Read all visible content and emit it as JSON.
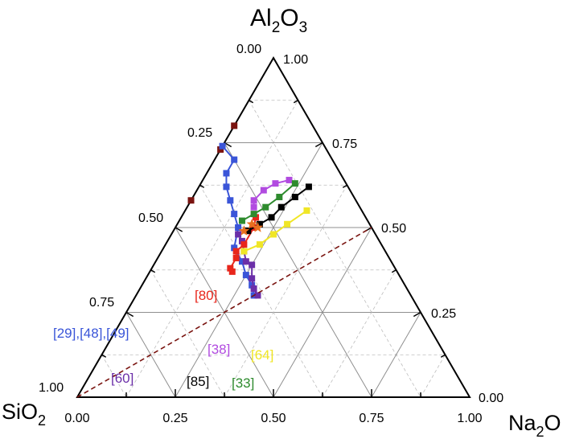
{
  "chart_data": {
    "type": "scatter",
    "subtype": "ternary",
    "corner_labels": {
      "top": {
        "main": "Al",
        "sub1": "2",
        "mid": "O",
        "sub2": "3"
      },
      "left": {
        "main": "SiO",
        "sub1": "2"
      },
      "right": {
        "main": "Na",
        "sub1": "2",
        "mid": "O"
      }
    },
    "ticks": {
      "bottom": [
        "0.00",
        "0.25",
        "0.50",
        "0.75",
        "1.00"
      ],
      "left": [
        "0.00",
        "0.25",
        "0.50",
        "0.75",
        "1.00"
      ],
      "right": [
        "1.00",
        "0.75",
        "0.50",
        "0.25",
        "0.00"
      ]
    },
    "grid": true,
    "colors": {
      "red": "#e8261c",
      "blue": "#3a55d8",
      "purple": "#6b2fa8",
      "magenta": "#b14be0",
      "green": "#2e8b2e",
      "yellow": "#f0e626",
      "black": "#000000",
      "darkred": "#7a1410",
      "orange": "#e87020"
    },
    "series": [
      {
        "color": "darkred",
        "line": false,
        "label": "",
        "points": [
          [
            0.0,
            0.8
          ],
          [
            0.0,
            0.73
          ],
          [
            0.0,
            0.58
          ]
        ]
      },
      {
        "color": "blue",
        "line": true,
        "label": "[29],[48],[49]",
        "points": [
          [
            0.0,
            0.74
          ],
          [
            0.05,
            0.7
          ],
          [
            0.05,
            0.66
          ],
          [
            0.07,
            0.62
          ],
          [
            0.1,
            0.58
          ],
          [
            0.13,
            0.54
          ],
          [
            0.16,
            0.5
          ],
          [
            0.18,
            0.44
          ],
          [
            0.22,
            0.4
          ],
          [
            0.25,
            0.36
          ],
          [
            0.28,
            0.33
          ],
          [
            0.3,
            0.3
          ]
        ]
      },
      {
        "color": "purple",
        "line": true,
        "label": "[60]",
        "points": [
          [
            0.17,
            0.48
          ],
          [
            0.19,
            0.46
          ],
          [
            0.21,
            0.43
          ],
          [
            0.23,
            0.4
          ],
          [
            0.25,
            0.39
          ],
          [
            0.27,
            0.35
          ],
          [
            0.29,
            0.32
          ],
          [
            0.31,
            0.3
          ]
        ]
      },
      {
        "color": "red",
        "line": true,
        "label": "[80]",
        "points": [
          [
            0.21,
            0.37
          ],
          [
            0.2,
            0.38
          ],
          [
            0.2,
            0.41
          ],
          [
            0.19,
            0.43
          ],
          [
            0.2,
            0.45
          ],
          [
            0.2,
            0.5
          ],
          [
            0.19,
            0.53
          ]
        ]
      },
      {
        "color": "magenta",
        "line": true,
        "label": "[38]",
        "points": [
          [
            0.17,
            0.56
          ],
          [
            0.16,
            0.58
          ],
          [
            0.17,
            0.61
          ],
          [
            0.19,
            0.63
          ],
          [
            0.22,
            0.64
          ]
        ]
      },
      {
        "color": "green",
        "line": true,
        "label": "[33]",
        "points": [
          [
            0.16,
            0.52
          ],
          [
            0.18,
            0.54
          ],
          [
            0.2,
            0.56
          ],
          [
            0.22,
            0.59
          ],
          [
            0.24,
            0.63
          ]
        ]
      },
      {
        "color": "yellow",
        "line": true,
        "label": "[64]",
        "points": [
          [
            0.21,
            0.43
          ],
          [
            0.24,
            0.45
          ],
          [
            0.26,
            0.48
          ],
          [
            0.28,
            0.51
          ],
          [
            0.31,
            0.55
          ]
        ]
      },
      {
        "color": "black",
        "line": true,
        "label": "[85]",
        "points": [
          [
            0.19,
            0.49
          ],
          [
            0.21,
            0.51
          ],
          [
            0.23,
            0.53
          ],
          [
            0.24,
            0.56
          ],
          [
            0.26,
            0.59
          ],
          [
            0.28,
            0.62
          ]
        ]
      },
      {
        "color": "orange",
        "line": false,
        "marker": "star",
        "label": "",
        "points": [
          [
            0.18,
            0.49
          ],
          [
            0.19,
            0.51
          ],
          [
            0.21,
            0.5
          ]
        ]
      }
    ],
    "reference_line": {
      "style": "dashed",
      "color": "darkred",
      "from": [
        0.0,
        1.0
      ],
      "to": [
        0.5,
        0.5
      ]
    }
  }
}
